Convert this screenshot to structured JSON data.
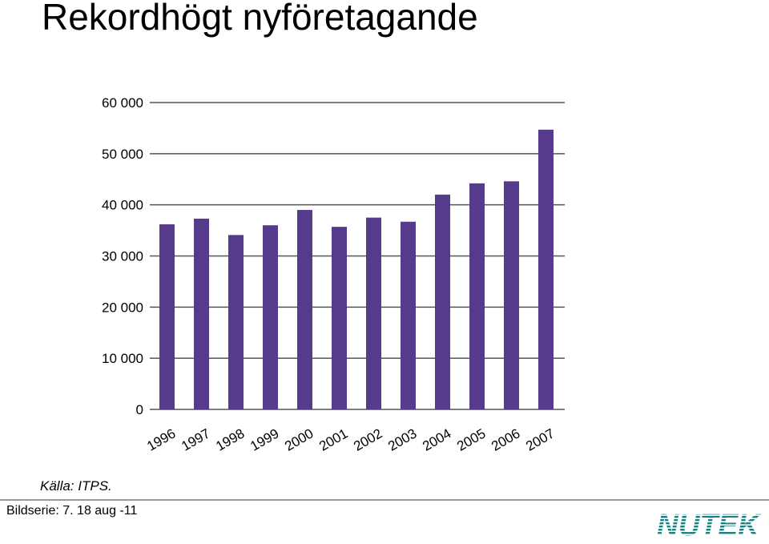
{
  "page": {
    "title": "Rekordhögt nyföretagande",
    "source": "Källa: ITPS.",
    "footer": "Bildserie: 7. 18 aug -11",
    "logo_text": "NUTEK"
  },
  "colors": {
    "bar": "#563a8c",
    "grid": "#555555",
    "logo": "#1a7f83",
    "text": "#000000"
  },
  "chart_data": {
    "type": "bar",
    "categories": [
      "1996",
      "1997",
      "1998",
      "1999",
      "2000",
      "2001",
      "2002",
      "2003",
      "2004",
      "2005",
      "2006",
      "2007"
    ],
    "values": [
      36200,
      37300,
      34100,
      36000,
      39000,
      35700,
      37500,
      36700,
      42000,
      44200,
      44600,
      54700
    ],
    "title": "",
    "xlabel": "",
    "ylabel": "",
    "ylim": [
      0,
      60000
    ],
    "yticks": [
      0,
      10000,
      20000,
      30000,
      40000,
      50000,
      60000
    ],
    "ytick_labels": [
      "0",
      "10 000",
      "20 000",
      "30 000",
      "40 000",
      "50 000",
      "60 000"
    ],
    "grid": true
  }
}
